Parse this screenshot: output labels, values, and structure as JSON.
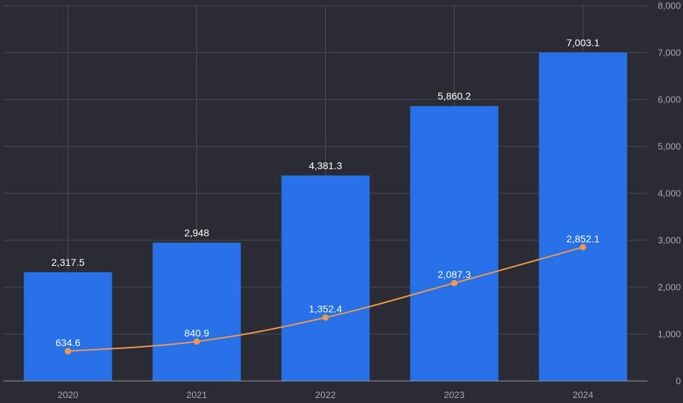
{
  "chart_data": {
    "type": "bar",
    "title": "",
    "xlabel": "",
    "ylabel": "",
    "categories": [
      "2020",
      "2021",
      "2022",
      "2023",
      "2024"
    ],
    "series": [
      {
        "type": "bar",
        "values": [
          2317.5,
          2948,
          4381.3,
          5860.2,
          7003.1
        ],
        "labels": [
          "2,317.5",
          "2,948",
          "4,381.3",
          "5,860.2",
          "7,003.1"
        ],
        "color": "#2670e8"
      },
      {
        "type": "line",
        "values": [
          634.6,
          840.9,
          1352.4,
          2087.3,
          2852.1
        ],
        "labels": [
          "634.6",
          "840.9",
          "1,352.4",
          "2,087.3",
          "2,852.1"
        ],
        "color": "#f2994a"
      }
    ],
    "ylim": [
      0,
      8000
    ],
    "yticks": [
      0,
      1000,
      2000,
      3000,
      4000,
      5000,
      6000,
      7000,
      8000
    ],
    "ytick_labels": [
      "0",
      "1,000",
      "2,000",
      "3,000",
      "4,000",
      "5,000",
      "6,000",
      "7,000",
      "8,000"
    ],
    "y_axis_side": "right",
    "grid": true,
    "background": "#2b2c33"
  }
}
